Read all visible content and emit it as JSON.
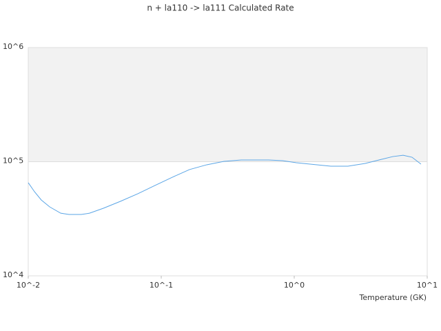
{
  "chart_data": {
    "type": "line",
    "title": "n + la110 -> la111 Calculated Rate",
    "x_label": "Temperature (GK)",
    "x": [
      0.01,
      0.01114,
      0.01253,
      0.01449,
      0.01754,
      0.02023,
      0.02506,
      0.02891,
      0.03673,
      0.04943,
      0.06668,
      0.08974,
      0.1211,
      0.1629,
      0.2198,
      0.2965,
      0.399,
      0.6427,
      0.8166,
      1.038,
      1.483,
      1.884,
      2.535,
      3.42,
      4.335,
      5.508,
      6.592,
      7.691,
      8.974
    ],
    "series": [
      {
        "color": "#5aa5e6",
        "values": [
          65500,
          54600,
          46200,
          40200,
          35400,
          34500,
          34500,
          35400,
          39100,
          45000,
          52400,
          61900,
          73100,
          85300,
          94000,
          100700,
          103500,
          103500,
          102100,
          97900,
          94000,
          91400,
          91400,
          96600,
          103500,
          110900,
          114000,
          109400,
          95300
        ]
      }
    ],
    "xlim": [
      0.01,
      10
    ],
    "ylim": [
      10000,
      1000000
    ],
    "xticks": [
      {
        "value": 0.01,
        "label": "10^-2"
      },
      {
        "value": 0.1,
        "label": "10^-1"
      },
      {
        "value": 1,
        "label": "10^0"
      },
      {
        "value": 10,
        "label": "10^1"
      }
    ],
    "yticks": [
      {
        "value": 10000,
        "label": "10^4"
      },
      {
        "value": 100000,
        "label": "10^5"
      },
      {
        "value": 1000000,
        "label": "10^6"
      }
    ],
    "log_x": true,
    "log_y": true,
    "grid": true,
    "band_color": "#f2f2f2"
  }
}
